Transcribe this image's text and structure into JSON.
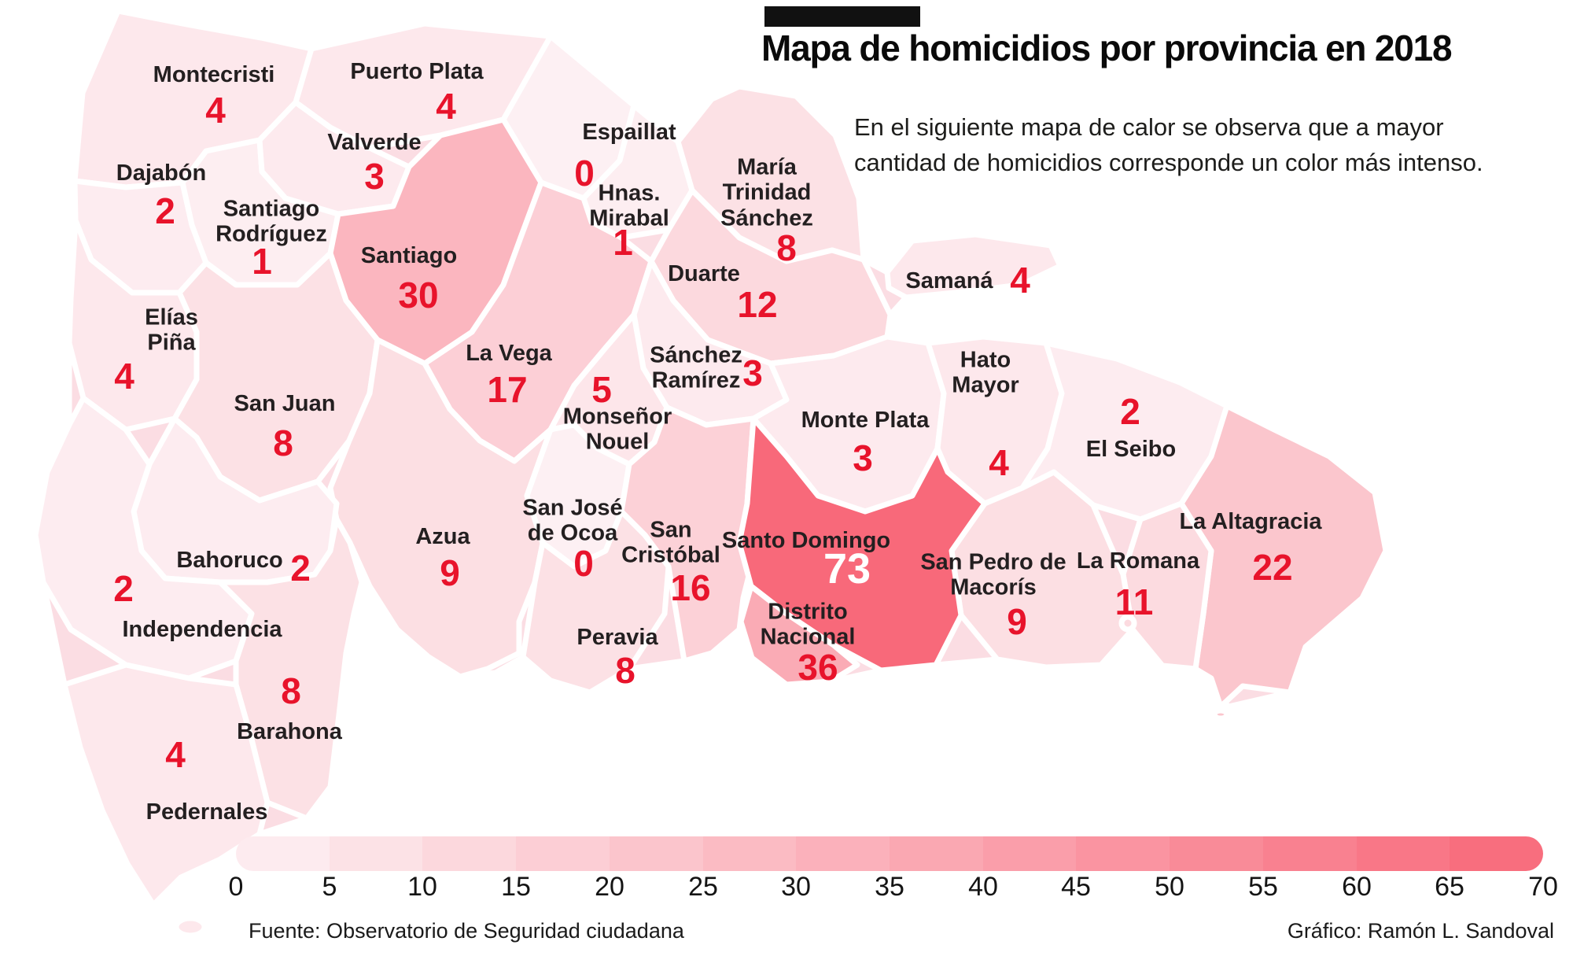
{
  "header": {
    "title": "Mapa de  homicidios por provincia en 2018",
    "intro": "En el siguiente mapa de calor se observa que a mayor cantidad de homicidios corresponde un color más intenso."
  },
  "colors": {
    "accent_red": "#e8132b",
    "label_text": "#231f20",
    "title_text": "#0a0a0a",
    "intro_text": "#1d1d1b",
    "scale_min": "#fdf0f3",
    "scale_max": "#f8697a",
    "map_border": "#ffffff",
    "value_on_dark": "#ffffff"
  },
  "legend": {
    "min": 0,
    "max": 70,
    "step": 5,
    "ticks": [
      "0",
      "5",
      "10",
      "15",
      "20",
      "25",
      "30",
      "35",
      "40",
      "45",
      "50",
      "55",
      "60",
      "65",
      "70"
    ]
  },
  "footer": {
    "source": "Fuente: Observatorio de Seguridad ciudadana",
    "credit": "Gráfico: Ramón L. Sandoval"
  },
  "chart_data": {
    "type": "heatmap",
    "title": "Mapa de homicidios por provincia en 2018",
    "unit": "homicidios",
    "scale": {
      "min": 0,
      "max": 70,
      "step": 5
    },
    "provinces": [
      {
        "name": "Montecristi",
        "display": "Montecristi",
        "value": 4
      },
      {
        "name": "Dajabón",
        "display": "Dajabón",
        "value": 2
      },
      {
        "name": "Santiago Rodríguez",
        "display": "Santiago\nRodríguez",
        "value": 1
      },
      {
        "name": "Valverde",
        "display": "Valverde",
        "value": 3
      },
      {
        "name": "Puerto Plata",
        "display": "Puerto Plata",
        "value": 4
      },
      {
        "name": "Espaillat",
        "display": "Espaillat",
        "value": 0
      },
      {
        "name": "Hermanas Mirabal",
        "display": "Hnas.\nMirabal",
        "value": 1
      },
      {
        "name": "María Trinidad Sánchez",
        "display": "María\nTrinidad\nSánchez",
        "value": 8
      },
      {
        "name": "Duarte",
        "display": "Duarte",
        "value": 12
      },
      {
        "name": "Samaná",
        "display": "Samaná",
        "value": 4
      },
      {
        "name": "Santiago",
        "display": "Santiago",
        "value": 30
      },
      {
        "name": "La Vega",
        "display": "La Vega",
        "value": 17
      },
      {
        "name": "Sánchez Ramírez",
        "display": "Sánchez\nRamírez",
        "value": 3
      },
      {
        "name": "Monseñor Nouel",
        "display": "Monseñor\nNouel",
        "value": 5
      },
      {
        "name": "San Juan",
        "display": "San Juan",
        "value": 8
      },
      {
        "name": "Elías Piña",
        "display": "Elías\nPiña",
        "value": 4
      },
      {
        "name": "Azua",
        "display": "Azua",
        "value": 9
      },
      {
        "name": "San José de Ocoa",
        "display": "San José\nde Ocoa",
        "value": 0
      },
      {
        "name": "Peravia",
        "display": "Peravia",
        "value": 8
      },
      {
        "name": "San Cristóbal",
        "display": "San\nCristóbal",
        "value": 16
      },
      {
        "name": "Bahoruco",
        "display": "Bahoruco",
        "value": 2
      },
      {
        "name": "Independencia",
        "display": "Independencia",
        "value": 2
      },
      {
        "name": "Barahona",
        "display": "Barahona",
        "value": 8
      },
      {
        "name": "Pedernales",
        "display": "Pedernales",
        "value": 4
      },
      {
        "name": "Monte Plata",
        "display": "Monte Plata",
        "value": 3
      },
      {
        "name": "Hato Mayor",
        "display": "Hato\nMayor",
        "value": 4
      },
      {
        "name": "El Seibo",
        "display": "El Seibo",
        "value": 2
      },
      {
        "name": "La Altagracia",
        "display": "La Altagracia",
        "value": 22
      },
      {
        "name": "La Romana",
        "display": "La Romana",
        "value": 11
      },
      {
        "name": "San Pedro de Macorís",
        "display": "San Pedro de\nMacorís",
        "value": 9
      },
      {
        "name": "Santo Domingo",
        "display": "Santo Domingo",
        "value": 73
      },
      {
        "name": "Distrito Nacional",
        "display": "Distrito\nNacional",
        "value": 36
      }
    ]
  }
}
